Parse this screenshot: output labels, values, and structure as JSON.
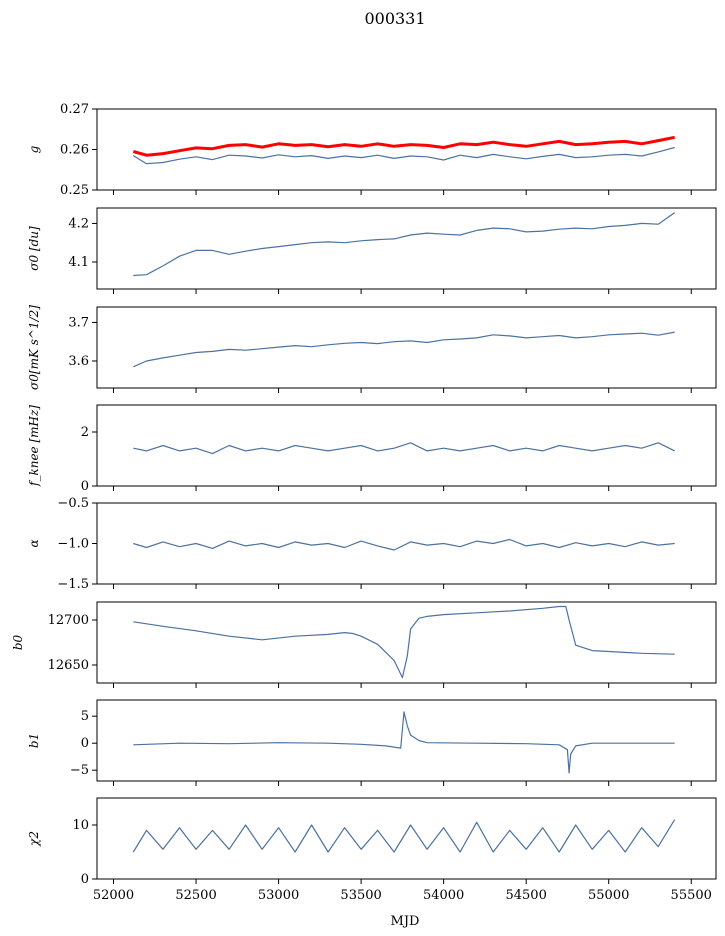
{
  "chart_data": {
    "type": "line",
    "title": "000331",
    "xlabel": "MJD",
    "xlim": [
      51900,
      55650
    ],
    "xticks": [
      52000,
      52500,
      53000,
      53500,
      54000,
      54500,
      55000,
      55500
    ],
    "xtick_labels": [
      "52000",
      "52500",
      "53000",
      "53500",
      "54000",
      "54500",
      "55000",
      "55500"
    ],
    "series_color": "#4c72a0",
    "highlight_color": "#ff0000",
    "panels": [
      {
        "name": "g",
        "ylabel": "g",
        "ylim": [
          0.25,
          0.27
        ],
        "yticks": [
          0.25,
          0.26,
          0.27
        ],
        "ytick_labels": [
          "0.25",
          "0.26",
          "0.27"
        ],
        "series": [
          {
            "name": "g-blue",
            "color": "#4c72a0",
            "x": [
              52120,
              52200,
              52300,
              52400,
              52500,
              52600,
              52700,
              52800,
              52900,
              53000,
              53100,
              53200,
              53300,
              53400,
              53500,
              53600,
              53700,
              53800,
              53900,
              54000,
              54100,
              54200,
              54300,
              54400,
              54500,
              54600,
              54700,
              54800,
              54900,
              55000,
              55100,
              55200,
              55300,
              55400
            ],
            "y": [
              0.2585,
              0.2565,
              0.2568,
              0.2576,
              0.2582,
              0.2575,
              0.2586,
              0.2584,
              0.2579,
              0.2587,
              0.2582,
              0.2585,
              0.2578,
              0.2584,
              0.258,
              0.2586,
              0.2578,
              0.2584,
              0.2582,
              0.2574,
              0.2586,
              0.258,
              0.2588,
              0.2582,
              0.2577,
              0.2583,
              0.2588,
              0.258,
              0.2582,
              0.2586,
              0.2588,
              0.2584,
              0.2594,
              0.2605
            ]
          },
          {
            "name": "g-red",
            "color": "#ff0000",
            "x": [
              52120,
              52200,
              52300,
              52400,
              52500,
              52600,
              52700,
              52800,
              52900,
              53000,
              53100,
              53200,
              53300,
              53400,
              53500,
              53600,
              53700,
              53800,
              53900,
              54000,
              54100,
              54200,
              54300,
              54400,
              54500,
              54600,
              54700,
              54800,
              54900,
              55000,
              55100,
              55200,
              55300,
              55400
            ],
            "y": [
              0.2595,
              0.2586,
              0.259,
              0.2597,
              0.2604,
              0.2602,
              0.261,
              0.2612,
              0.2606,
              0.2614,
              0.261,
              0.2612,
              0.2607,
              0.2612,
              0.2608,
              0.2614,
              0.2608,
              0.2612,
              0.261,
              0.2605,
              0.2614,
              0.2612,
              0.2618,
              0.2612,
              0.2608,
              0.2614,
              0.262,
              0.2612,
              0.2614,
              0.2618,
              0.262,
              0.2614,
              0.2622,
              0.263
            ]
          }
        ]
      },
      {
        "name": "sigma0-du",
        "ylabel": "σ0 [du]",
        "ylim": [
          4.03,
          4.24
        ],
        "yticks": [
          4.1,
          4.2
        ],
        "ytick_labels": [
          "4.1",
          "4.2"
        ],
        "series": [
          {
            "name": "sigma0-du-line",
            "color": "#4c72a0",
            "x": [
              52120,
              52200,
              52300,
              52400,
              52500,
              52600,
              52700,
              52800,
              52900,
              53000,
              53100,
              53200,
              53300,
              53400,
              53500,
              53600,
              53700,
              53800,
              53900,
              54000,
              54100,
              54200,
              54300,
              54400,
              54500,
              54600,
              54700,
              54800,
              54900,
              55000,
              55100,
              55200,
              55300,
              55400
            ],
            "y": [
              4.065,
              4.067,
              4.09,
              4.115,
              4.13,
              4.13,
              4.12,
              4.128,
              4.135,
              4.14,
              4.145,
              4.15,
              4.152,
              4.15,
              4.155,
              4.158,
              4.16,
              4.17,
              4.175,
              4.172,
              4.17,
              4.182,
              4.188,
              4.186,
              4.178,
              4.18,
              4.185,
              4.188,
              4.186,
              4.192,
              4.195,
              4.2,
              4.198,
              4.228
            ]
          }
        ]
      },
      {
        "name": "sigma0-mks",
        "ylabel": "σ0[mK s^1/2]",
        "ylim": [
          3.53,
          3.74
        ],
        "yticks": [
          3.6,
          3.7
        ],
        "ytick_labels": [
          "3.6",
          "3.7"
        ],
        "series": [
          {
            "name": "sigma0-mks-line",
            "color": "#4c72a0",
            "x": [
              52120,
              52200,
              52300,
              52400,
              52500,
              52600,
              52700,
              52800,
              52900,
              53000,
              53100,
              53200,
              53300,
              53400,
              53500,
              53600,
              53700,
              53800,
              53900,
              54000,
              54100,
              54200,
              54300,
              54400,
              54500,
              54600,
              54700,
              54800,
              54900,
              55000,
              55100,
              55200,
              55300,
              55400
            ],
            "y": [
              3.585,
              3.6,
              3.608,
              3.615,
              3.622,
              3.625,
              3.63,
              3.628,
              3.632,
              3.636,
              3.64,
              3.637,
              3.642,
              3.646,
              3.648,
              3.645,
              3.65,
              3.652,
              3.648,
              3.655,
              3.657,
              3.66,
              3.668,
              3.665,
              3.66,
              3.663,
              3.666,
              3.66,
              3.663,
              3.668,
              3.67,
              3.672,
              3.667,
              3.675
            ]
          }
        ]
      },
      {
        "name": "fknee",
        "ylabel": "f_knee [mHz]",
        "ylim": [
          0,
          3
        ],
        "yticks": [
          0,
          2
        ],
        "ytick_labels": [
          "0",
          "2"
        ],
        "series": [
          {
            "name": "fknee-line",
            "color": "#4c72a0",
            "x": [
              52120,
              52200,
              52300,
              52400,
              52500,
              52600,
              52700,
              52800,
              52900,
              53000,
              53100,
              53200,
              53300,
              53400,
              53500,
              53600,
              53700,
              53800,
              53900,
              54000,
              54100,
              54200,
              54300,
              54400,
              54500,
              54600,
              54700,
              54800,
              54900,
              55000,
              55100,
              55200,
              55300,
              55400
            ],
            "y": [
              1.4,
              1.3,
              1.5,
              1.3,
              1.4,
              1.2,
              1.5,
              1.3,
              1.4,
              1.3,
              1.5,
              1.4,
              1.3,
              1.4,
              1.5,
              1.3,
              1.4,
              1.6,
              1.3,
              1.4,
              1.3,
              1.4,
              1.5,
              1.3,
              1.4,
              1.3,
              1.5,
              1.4,
              1.3,
              1.4,
              1.5,
              1.4,
              1.6,
              1.3
            ]
          }
        ]
      },
      {
        "name": "alpha",
        "ylabel": "α",
        "ylim": [
          -1.5,
          -0.5
        ],
        "yticks": [
          -1.5,
          -1.0,
          -0.5
        ],
        "ytick_labels": [
          "−1.5",
          "−1.0",
          "−0.5"
        ],
        "series": [
          {
            "name": "alpha-line",
            "color": "#4c72a0",
            "x": [
              52120,
              52200,
              52300,
              52400,
              52500,
              52600,
              52700,
              52800,
              52900,
              53000,
              53100,
              53200,
              53300,
              53400,
              53500,
              53600,
              53700,
              53800,
              53900,
              54000,
              54100,
              54200,
              54300,
              54400,
              54500,
              54600,
              54700,
              54800,
              54900,
              55000,
              55100,
              55200,
              55300,
              55400
            ],
            "y": [
              -1.0,
              -1.05,
              -0.98,
              -1.04,
              -1.0,
              -1.06,
              -0.97,
              -1.03,
              -1.0,
              -1.05,
              -0.98,
              -1.02,
              -1.0,
              -1.05,
              -0.97,
              -1.03,
              -1.08,
              -0.98,
              -1.02,
              -1.0,
              -1.04,
              -0.97,
              -1.0,
              -0.95,
              -1.03,
              -1.0,
              -1.05,
              -0.99,
              -1.03,
              -1.0,
              -1.04,
              -0.98,
              -1.02,
              -1.0
            ]
          }
        ]
      },
      {
        "name": "b0",
        "ylabel": "b0",
        "ylim": [
          12630,
          12720
        ],
        "yticks": [
          12650,
          12700
        ],
        "ytick_labels": [
          "12650",
          "12700"
        ],
        "series": [
          {
            "name": "b0-line",
            "color": "#4c72a0",
            "x": [
              52120,
              52300,
              52500,
              52700,
              52900,
              53100,
              53300,
              53400,
              53450,
              53500,
              53600,
              53700,
              53750,
              53780,
              53800,
              53850,
              53900,
              54000,
              54200,
              54400,
              54600,
              54700,
              54740,
              54760,
              54800,
              54900,
              55000,
              55200,
              55400
            ],
            "y": [
              12698,
              12693,
              12688,
              12682,
              12678,
              12682,
              12684,
              12686,
              12685,
              12682,
              12673,
              12655,
              12636,
              12660,
              12690,
              12702,
              12704,
              12706,
              12708,
              12710,
              12713,
              12715,
              12715,
              12700,
              12672,
              12666,
              12665,
              12663,
              12662
            ]
          }
        ]
      },
      {
        "name": "b1",
        "ylabel": "b1",
        "ylim": [
          -7,
          8
        ],
        "yticks": [
          -5,
          0,
          5
        ],
        "ytick_labels": [
          "−5",
          "0",
          "5"
        ],
        "series": [
          {
            "name": "b1-line",
            "color": "#4c72a0",
            "x": [
              52120,
              52400,
              52700,
              53000,
              53300,
              53500,
              53650,
              53740,
              53760,
              53780,
              53800,
              53850,
              53900,
              54200,
              54500,
              54700,
              54750,
              54760,
              54770,
              54800,
              54900,
              55100,
              55400
            ],
            "y": [
              -0.3,
              0.0,
              -0.1,
              0.1,
              0.0,
              -0.2,
              -0.5,
              -0.9,
              5.8,
              3.2,
              1.5,
              0.5,
              0.1,
              0.0,
              -0.1,
              -0.3,
              -1.2,
              -5.5,
              -2.0,
              -0.5,
              0.0,
              0.0,
              0.0
            ]
          }
        ]
      },
      {
        "name": "chi2",
        "ylabel": "χ2",
        "ylim": [
          0,
          15
        ],
        "yticks": [
          0,
          10
        ],
        "ytick_labels": [
          "0",
          "10"
        ],
        "series": [
          {
            "name": "chi2-line",
            "color": "#4c72a0",
            "x": [
              52120,
              52200,
              52300,
              52400,
              52500,
              52600,
              52700,
              52800,
              52900,
              53000,
              53100,
              53200,
              53300,
              53400,
              53500,
              53600,
              53700,
              53800,
              53900,
              54000,
              54100,
              54200,
              54300,
              54400,
              54500,
              54600,
              54700,
              54800,
              54900,
              55000,
              55100,
              55200,
              55300,
              55400
            ],
            "y": [
              5.0,
              9.0,
              5.5,
              9.5,
              5.5,
              9.0,
              5.5,
              10.0,
              5.5,
              9.5,
              5.0,
              10.0,
              5.0,
              9.5,
              5.5,
              9.0,
              5.0,
              10.0,
              5.5,
              9.5,
              5.0,
              10.5,
              5.0,
              9.0,
              5.5,
              9.5,
              5.0,
              10.0,
              5.5,
              9.0,
              5.0,
              9.5,
              6.0,
              11.0
            ]
          }
        ]
      }
    ]
  }
}
